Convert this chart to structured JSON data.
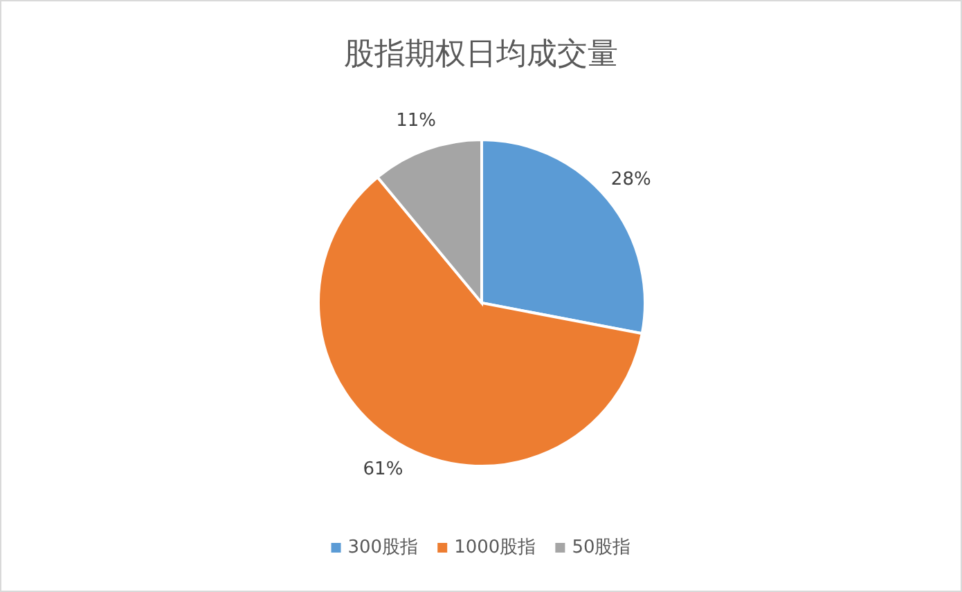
{
  "chart_data": {
    "type": "pie",
    "title": "股指期权日均成交量",
    "categories": [
      "300股指",
      "1000股指",
      "50股指"
    ],
    "values": [
      28,
      61,
      11
    ],
    "colors": [
      "#5b9bd5",
      "#ed7d31",
      "#a5a5a5"
    ],
    "value_labels": [
      "28%",
      "61%",
      "11%"
    ],
    "legend": "bottom"
  }
}
